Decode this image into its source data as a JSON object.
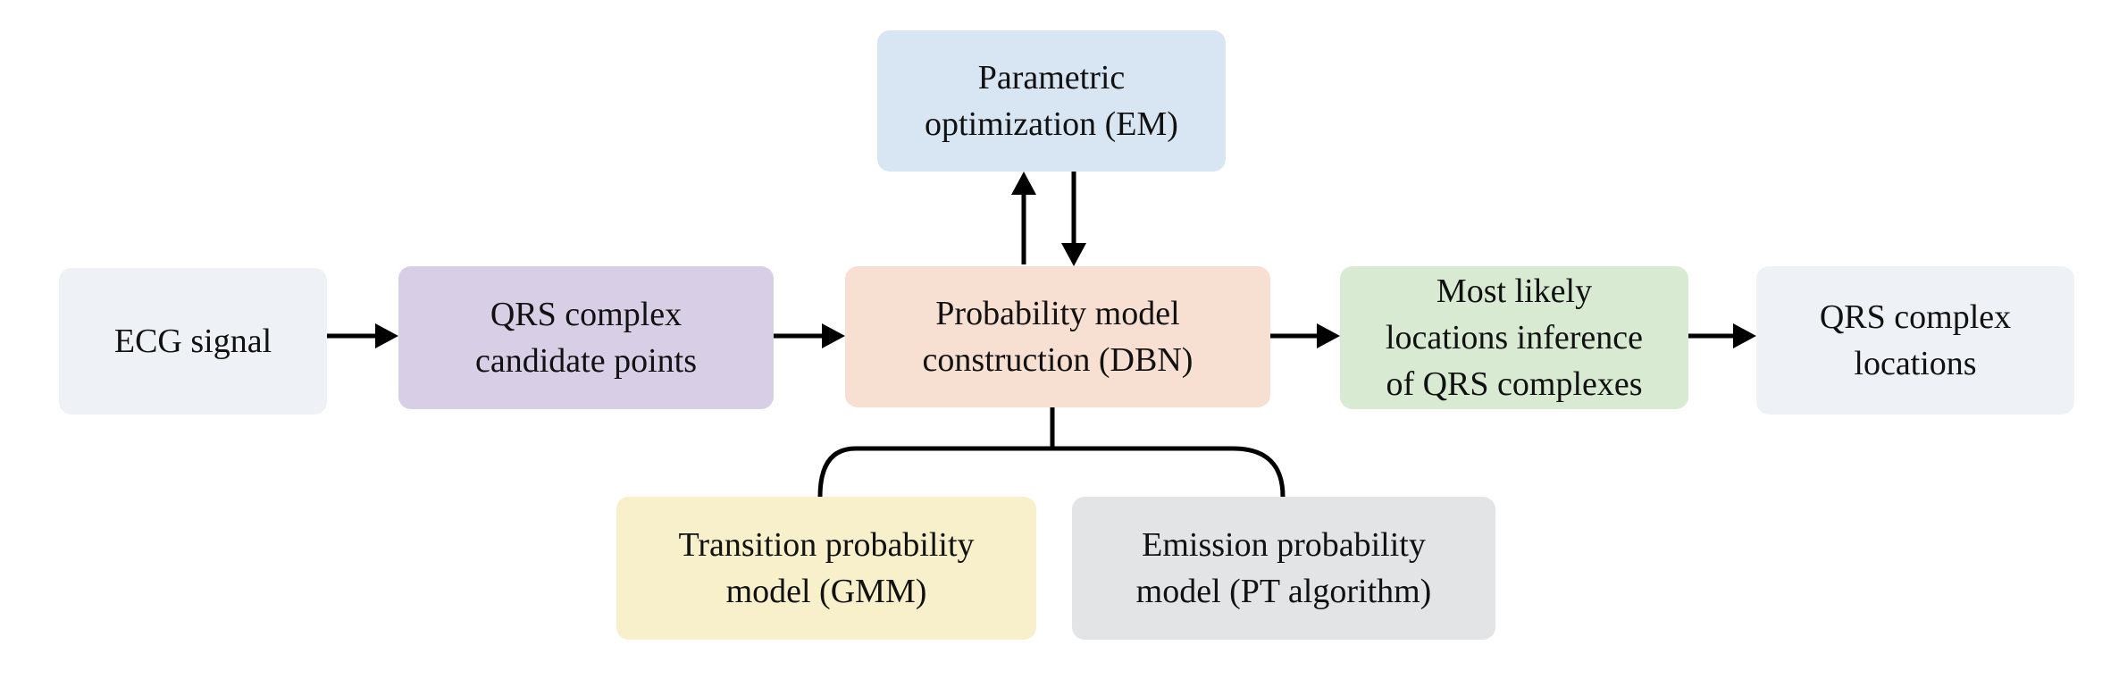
{
  "nodes": {
    "ecg": {
      "lines": [
        "ECG signal"
      ],
      "color": "#eef2f6"
    },
    "candidates": {
      "lines": [
        "QRS complex",
        "candidate points"
      ],
      "color": "#d8cfe6"
    },
    "dbn": {
      "lines": [
        "Probability model",
        "construction (DBN)"
      ],
      "color": "#f7dfd2"
    },
    "em": {
      "lines": [
        "Parametric",
        "optimization (EM)"
      ],
      "color": "#d8e6f3"
    },
    "inference": {
      "lines": [
        "Most likely",
        "locations inference",
        "of QRS complexes"
      ],
      "color": "#d9ead3"
    },
    "output": {
      "lines": [
        "QRS complex",
        "locations"
      ],
      "color": "#eef2f6"
    },
    "gmm": {
      "lines": [
        "Transition probability",
        "model (GMM)"
      ],
      "color": "#f8efcb"
    },
    "pt": {
      "lines": [
        "Emission probability",
        "model (PT algorithm)"
      ],
      "color": "#e3e4e6"
    }
  }
}
